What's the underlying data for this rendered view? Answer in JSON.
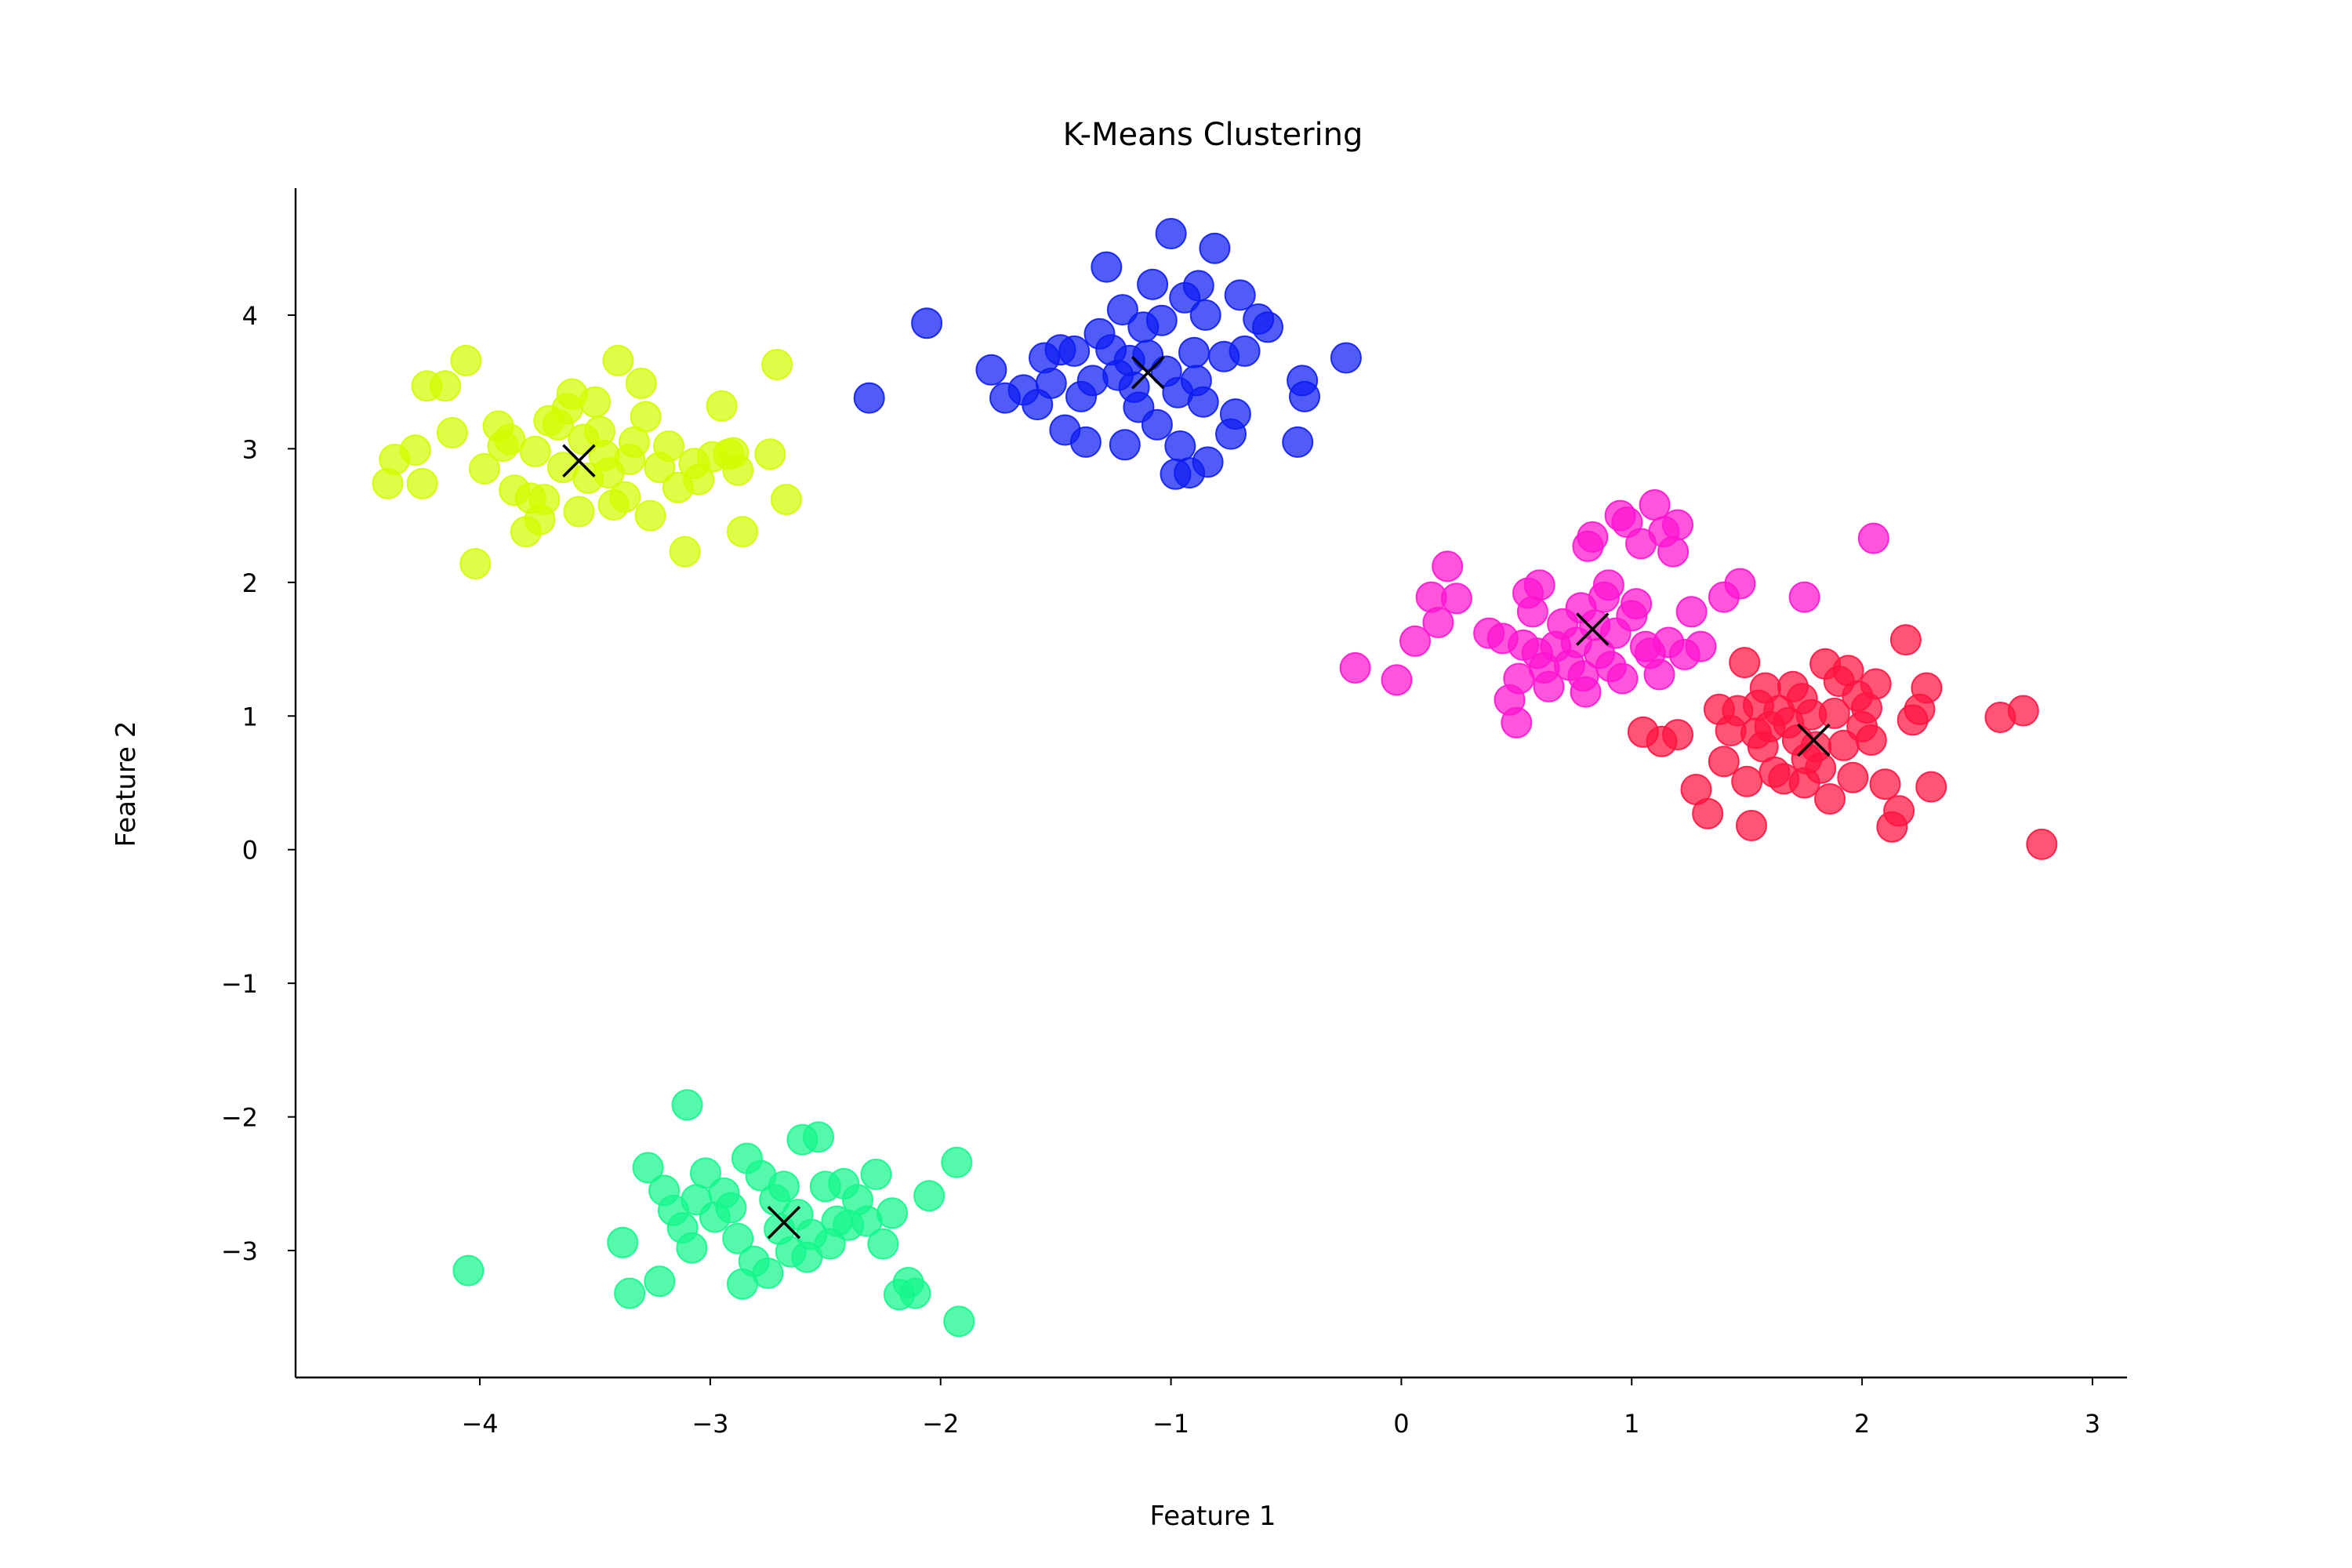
{
  "chart_data": {
    "type": "scatter",
    "title": "K-Means Clustering",
    "xlabel": "Feature 1",
    "ylabel": "Feature 2",
    "xlim": [
      -4.8,
      3.15
    ],
    "ylim": [
      -3.95,
      4.95
    ],
    "xticks": [
      -4,
      -3,
      -2,
      -1,
      0,
      1,
      2,
      3
    ],
    "yticks": [
      -3,
      -2,
      -1,
      0,
      1,
      2,
      3,
      4
    ],
    "grid": false,
    "legend": "none",
    "clusters": [
      {
        "color": "#d4fb00",
        "centroid": [
          -3.57,
          2.91
        ],
        "points": [
          [
            -4.4,
            2.74
          ],
          [
            -4.37,
            2.92
          ],
          [
            -4.28,
            2.99
          ],
          [
            -4.25,
            2.74
          ],
          [
            -4.23,
            3.47
          ],
          [
            -4.15,
            3.47
          ],
          [
            -4.12,
            3.12
          ],
          [
            -4.06,
            3.66
          ],
          [
            -4.02,
            2.14
          ],
          [
            -3.98,
            2.85
          ],
          [
            -3.92,
            3.17
          ],
          [
            -3.9,
            3.02
          ],
          [
            -3.87,
            3.07
          ],
          [
            -3.85,
            2.69
          ],
          [
            -3.8,
            2.38
          ],
          [
            -3.78,
            2.63
          ],
          [
            -3.76,
            2.98
          ],
          [
            -3.74,
            2.47
          ],
          [
            -3.72,
            2.62
          ],
          [
            -3.7,
            3.21
          ],
          [
            -3.66,
            3.18
          ],
          [
            -3.64,
            2.86
          ],
          [
            -3.62,
            3.3
          ],
          [
            -3.6,
            3.41
          ],
          [
            -3.57,
            2.53
          ],
          [
            -3.55,
            3.07
          ],
          [
            -3.53,
            2.78
          ],
          [
            -3.5,
            3.35
          ],
          [
            -3.48,
            3.13
          ],
          [
            -3.46,
            2.95
          ],
          [
            -3.44,
            2.82
          ],
          [
            -3.42,
            2.58
          ],
          [
            -3.4,
            3.66
          ],
          [
            -3.37,
            2.64
          ],
          [
            -3.35,
            2.92
          ],
          [
            -3.33,
            3.05
          ],
          [
            -3.3,
            3.49
          ],
          [
            -3.28,
            3.24
          ],
          [
            -3.26,
            2.5
          ],
          [
            -3.22,
            2.86
          ],
          [
            -3.18,
            3.02
          ],
          [
            -3.14,
            2.71
          ],
          [
            -3.11,
            2.23
          ],
          [
            -3.07,
            2.89
          ],
          [
            -3.05,
            2.77
          ],
          [
            -2.99,
            2.94
          ],
          [
            -2.95,
            3.32
          ],
          [
            -2.92,
            2.96
          ],
          [
            -2.9,
            2.97
          ],
          [
            -2.88,
            2.84
          ],
          [
            -2.86,
            2.38
          ],
          [
            -2.74,
            2.96
          ],
          [
            -2.71,
            3.63
          ],
          [
            -2.67,
            2.62
          ]
        ]
      },
      {
        "color": "#0d1df1",
        "centroid": [
          -1.1,
          3.57
        ],
        "points": [
          [
            -2.31,
            3.38
          ],
          [
            -2.06,
            3.94
          ],
          [
            -1.78,
            3.59
          ],
          [
            -1.72,
            3.38
          ],
          [
            -1.64,
            3.44
          ],
          [
            -1.58,
            3.33
          ],
          [
            -1.55,
            3.68
          ],
          [
            -1.52,
            3.49
          ],
          [
            -1.48,
            3.74
          ],
          [
            -1.46,
            3.14
          ],
          [
            -1.42,
            3.73
          ],
          [
            -1.39,
            3.39
          ],
          [
            -1.37,
            3.05
          ],
          [
            -1.34,
            3.51
          ],
          [
            -1.31,
            3.86
          ],
          [
            -1.28,
            4.36
          ],
          [
            -1.26,
            3.74
          ],
          [
            -1.23,
            3.55
          ],
          [
            -1.21,
            4.04
          ],
          [
            -1.2,
            3.03
          ],
          [
            -1.18,
            3.66
          ],
          [
            -1.16,
            3.46
          ],
          [
            -1.14,
            3.31
          ],
          [
            -1.12,
            3.91
          ],
          [
            -1.1,
            3.7
          ],
          [
            -1.08,
            4.23
          ],
          [
            -1.06,
            3.18
          ],
          [
            -1.04,
            3.96
          ],
          [
            -1.02,
            3.58
          ],
          [
            -1.0,
            4.61
          ],
          [
            -0.98,
            2.81
          ],
          [
            -0.97,
            3.42
          ],
          [
            -0.96,
            3.02
          ],
          [
            -0.94,
            4.13
          ],
          [
            -0.92,
            2.82
          ],
          [
            -0.9,
            3.72
          ],
          [
            -0.89,
            3.51
          ],
          [
            -0.88,
            4.22
          ],
          [
            -0.86,
            3.35
          ],
          [
            -0.85,
            4.0
          ],
          [
            -0.84,
            2.9
          ],
          [
            -0.81,
            4.5
          ],
          [
            -0.77,
            3.69
          ],
          [
            -0.74,
            3.11
          ],
          [
            -0.72,
            3.26
          ],
          [
            -0.7,
            4.15
          ],
          [
            -0.68,
            3.73
          ],
          [
            -0.62,
            3.97
          ],
          [
            -0.58,
            3.91
          ],
          [
            -0.45,
            3.05
          ],
          [
            -0.43,
            3.51
          ],
          [
            -0.42,
            3.39
          ],
          [
            -0.24,
            3.68
          ]
        ]
      },
      {
        "color": "#ff14d0",
        "centroid": [
          0.83,
          1.65
        ],
        "points": [
          [
            -0.2,
            1.36
          ],
          [
            -0.02,
            1.27
          ],
          [
            0.06,
            1.56
          ],
          [
            0.13,
            1.89
          ],
          [
            0.16,
            1.7
          ],
          [
            0.2,
            2.12
          ],
          [
            0.24,
            1.88
          ],
          [
            0.38,
            1.62
          ],
          [
            0.44,
            1.58
          ],
          [
            0.47,
            1.12
          ],
          [
            0.5,
            0.95
          ],
          [
            0.51,
            1.28
          ],
          [
            0.53,
            1.53
          ],
          [
            0.55,
            1.92
          ],
          [
            0.57,
            1.78
          ],
          [
            0.59,
            1.47
          ],
          [
            0.6,
            1.98
          ],
          [
            0.62,
            1.36
          ],
          [
            0.64,
            1.22
          ],
          [
            0.67,
            1.52
          ],
          [
            0.7,
            1.69
          ],
          [
            0.73,
            1.38
          ],
          [
            0.76,
            1.55
          ],
          [
            0.78,
            1.81
          ],
          [
            0.79,
            1.3
          ],
          [
            0.8,
            1.18
          ],
          [
            0.81,
            2.27
          ],
          [
            0.83,
            2.34
          ],
          [
            0.84,
            1.68
          ],
          [
            0.86,
            1.47
          ],
          [
            0.88,
            1.89
          ],
          [
            0.9,
            1.98
          ],
          [
            0.91,
            1.37
          ],
          [
            0.93,
            1.62
          ],
          [
            0.95,
            2.5
          ],
          [
            0.96,
            1.28
          ],
          [
            0.98,
            2.45
          ],
          [
            1.0,
            1.75
          ],
          [
            1.02,
            1.84
          ],
          [
            1.04,
            2.29
          ],
          [
            1.06,
            1.52
          ],
          [
            1.08,
            1.47
          ],
          [
            1.1,
            2.58
          ],
          [
            1.12,
            1.31
          ],
          [
            1.14,
            2.38
          ],
          [
            1.16,
            1.55
          ],
          [
            1.18,
            2.23
          ],
          [
            1.2,
            2.43
          ],
          [
            1.23,
            1.46
          ],
          [
            1.26,
            1.78
          ],
          [
            1.3,
            1.52
          ],
          [
            1.4,
            1.89
          ],
          [
            1.47,
            1.99
          ],
          [
            1.75,
            1.89
          ],
          [
            2.05,
            2.33
          ]
        ]
      },
      {
        "color": "#ff1440",
        "centroid": [
          1.79,
          0.82
        ],
        "points": [
          [
            1.05,
            0.88
          ],
          [
            1.13,
            0.81
          ],
          [
            1.2,
            0.86
          ],
          [
            1.28,
            0.45
          ],
          [
            1.33,
            0.27
          ],
          [
            1.38,
            1.05
          ],
          [
            1.4,
            0.66
          ],
          [
            1.43,
            0.89
          ],
          [
            1.46,
            1.04
          ],
          [
            1.49,
            1.4
          ],
          [
            1.5,
            0.51
          ],
          [
            1.52,
            0.18
          ],
          [
            1.54,
            0.87
          ],
          [
            1.55,
            1.08
          ],
          [
            1.57,
            0.77
          ],
          [
            1.58,
            1.21
          ],
          [
            1.6,
            0.92
          ],
          [
            1.62,
            0.58
          ],
          [
            1.64,
            1.04
          ],
          [
            1.66,
            0.53
          ],
          [
            1.68,
            0.95
          ],
          [
            1.7,
            1.22
          ],
          [
            1.72,
            0.82
          ],
          [
            1.74,
            1.13
          ],
          [
            1.75,
            0.5
          ],
          [
            1.76,
            0.68
          ],
          [
            1.78,
            1.01
          ],
          [
            1.8,
            0.77
          ],
          [
            1.82,
            0.61
          ],
          [
            1.84,
            1.39
          ],
          [
            1.86,
            0.38
          ],
          [
            1.88,
            1.02
          ],
          [
            1.9,
            1.26
          ],
          [
            1.92,
            0.78
          ],
          [
            1.94,
            1.34
          ],
          [
            1.96,
            0.54
          ],
          [
            1.98,
            1.15
          ],
          [
            2.0,
            0.92
          ],
          [
            2.02,
            1.06
          ],
          [
            2.04,
            0.82
          ],
          [
            2.06,
            1.24
          ],
          [
            2.1,
            0.49
          ],
          [
            2.13,
            0.17
          ],
          [
            2.16,
            0.29
          ],
          [
            2.19,
            1.57
          ],
          [
            2.22,
            0.97
          ],
          [
            2.25,
            1.05
          ],
          [
            2.28,
            1.21
          ],
          [
            2.3,
            0.47
          ],
          [
            2.6,
            0.99
          ],
          [
            2.7,
            1.04
          ],
          [
            2.78,
            0.04
          ]
        ]
      },
      {
        "color": "#14f68b",
        "centroid": [
          -2.68,
          -2.79
        ],
        "points": [
          [
            -4.05,
            -3.15
          ],
          [
            -3.38,
            -2.94
          ],
          [
            -3.35,
            -3.32
          ],
          [
            -3.27,
            -2.38
          ],
          [
            -3.22,
            -3.23
          ],
          [
            -3.2,
            -2.55
          ],
          [
            -3.16,
            -2.7
          ],
          [
            -3.12,
            -2.83
          ],
          [
            -3.1,
            -1.91
          ],
          [
            -3.08,
            -2.98
          ],
          [
            -3.06,
            -2.62
          ],
          [
            -3.02,
            -2.42
          ],
          [
            -2.98,
            -2.75
          ],
          [
            -2.94,
            -2.57
          ],
          [
            -2.91,
            -2.68
          ],
          [
            -2.88,
            -2.91
          ],
          [
            -2.86,
            -3.25
          ],
          [
            -2.84,
            -2.31
          ],
          [
            -2.81,
            -3.08
          ],
          [
            -2.78,
            -2.44
          ],
          [
            -2.75,
            -3.17
          ],
          [
            -2.72,
            -2.62
          ],
          [
            -2.7,
            -2.84
          ],
          [
            -2.68,
            -2.52
          ],
          [
            -2.65,
            -3.01
          ],
          [
            -2.62,
            -2.73
          ],
          [
            -2.6,
            -2.17
          ],
          [
            -2.58,
            -3.05
          ],
          [
            -2.56,
            -2.88
          ],
          [
            -2.53,
            -2.15
          ],
          [
            -2.5,
            -2.52
          ],
          [
            -2.48,
            -2.95
          ],
          [
            -2.45,
            -2.78
          ],
          [
            -2.42,
            -2.5
          ],
          [
            -2.4,
            -2.81
          ],
          [
            -2.36,
            -2.62
          ],
          [
            -2.32,
            -2.78
          ],
          [
            -2.28,
            -2.43
          ],
          [
            -2.25,
            -2.95
          ],
          [
            -2.21,
            -2.72
          ],
          [
            -2.18,
            -3.33
          ],
          [
            -2.14,
            -3.24
          ],
          [
            -2.11,
            -3.32
          ],
          [
            -2.05,
            -2.59
          ],
          [
            -1.93,
            -2.34
          ],
          [
            -1.92,
            -3.53
          ]
        ]
      }
    ]
  }
}
